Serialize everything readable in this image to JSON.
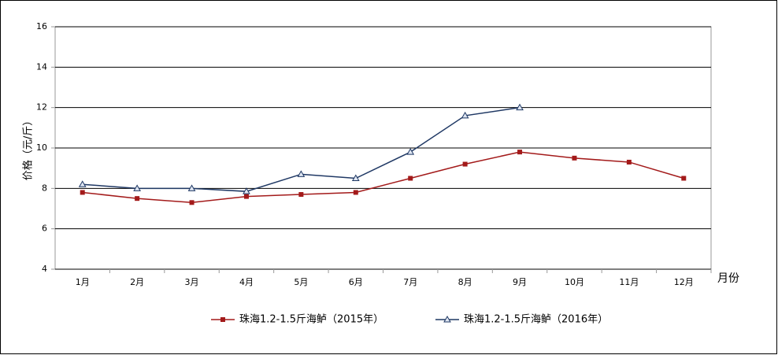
{
  "chart_data": {
    "type": "line",
    "y_label": "价格（元/斤）",
    "x_label": "月份",
    "categories": [
      "1月",
      "2月",
      "3月",
      "4月",
      "5月",
      "6月",
      "7月",
      "8月",
      "9月",
      "10月",
      "11月",
      "12月"
    ],
    "series": [
      {
        "name": "珠海1.2-1.5斤海鲈（2015年）",
        "color": "#a31a1a",
        "marker": "square",
        "values": [
          7.8,
          7.5,
          7.3,
          7.6,
          7.7,
          7.8,
          8.5,
          9.2,
          9.8,
          9.5,
          9.3,
          8.5
        ]
      },
      {
        "name": "珠海1.2-1.5斤海鲈（2016年）",
        "color": "#1f3864",
        "marker": "triangle",
        "values": [
          8.2,
          8.0,
          8.0,
          7.85,
          8.7,
          8.5,
          9.8,
          11.6,
          12.0,
          null,
          null,
          null
        ]
      }
    ],
    "ylim": [
      4,
      16
    ],
    "yticks": [
      4,
      6,
      8,
      10,
      12,
      14,
      16
    ],
    "grid": true,
    "legend": "bottom"
  }
}
